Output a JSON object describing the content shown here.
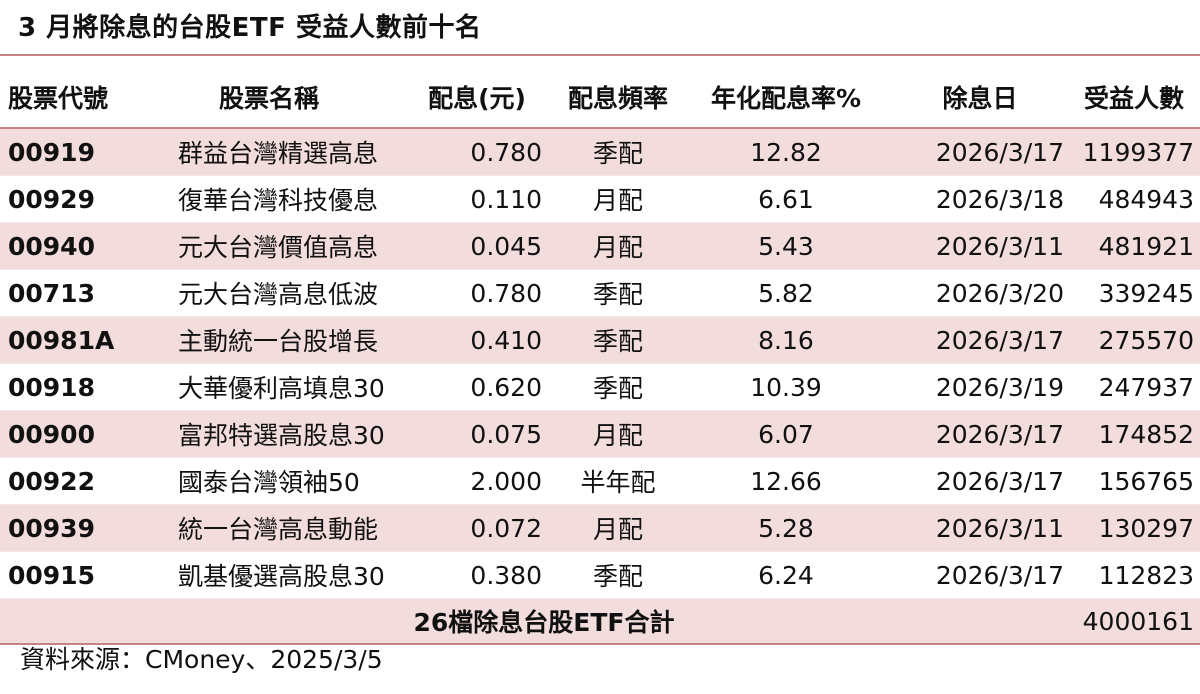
{
  "title": "3 月將除息的台股ETF 受益人數前十名",
  "headers": {
    "code": "股票代號",
    "name": "股票名稱",
    "dividend": "配息(元)",
    "frequency": "配息頻率",
    "yield": "年化配息率%",
    "ex_date": "除息日",
    "holders": "受益人數"
  },
  "rows": [
    {
      "code": "00919",
      "name": "群益台灣精選高息",
      "dividend": "0.780",
      "frequency": "季配",
      "yield": "12.82",
      "ex_date": "2026/3/17",
      "holders": "1199377"
    },
    {
      "code": "00929",
      "name": "復華台灣科技優息",
      "dividend": "0.110",
      "frequency": "月配",
      "yield": "6.61",
      "ex_date": "2026/3/18",
      "holders": "484943"
    },
    {
      "code": "00940",
      "name": "元大台灣價值高息",
      "dividend": "0.045",
      "frequency": "月配",
      "yield": "5.43",
      "ex_date": "2026/3/11",
      "holders": "481921"
    },
    {
      "code": "00713",
      "name": "元大台灣高息低波",
      "dividend": "0.780",
      "frequency": "季配",
      "yield": "5.82",
      "ex_date": "2026/3/20",
      "holders": "339245"
    },
    {
      "code": "00981A",
      "name": "主動統一台股增長",
      "dividend": "0.410",
      "frequency": "季配",
      "yield": "8.16",
      "ex_date": "2026/3/17",
      "holders": "275570"
    },
    {
      "code": "00918",
      "name": "大華優利高填息30",
      "dividend": "0.620",
      "frequency": "季配",
      "yield": "10.39",
      "ex_date": "2026/3/19",
      "holders": "247937"
    },
    {
      "code": "00900",
      "name": "富邦特選高股息30",
      "dividend": "0.075",
      "frequency": "月配",
      "yield": "6.07",
      "ex_date": "2026/3/17",
      "holders": "174852"
    },
    {
      "code": "00922",
      "name": "國泰台灣領袖50",
      "dividend": "2.000",
      "frequency": "半年配",
      "yield": "12.66",
      "ex_date": "2026/3/17",
      "holders": "156765"
    },
    {
      "code": "00939",
      "name": "統一台灣高息動能",
      "dividend": "0.072",
      "frequency": "月配",
      "yield": "5.28",
      "ex_date": "2026/3/11",
      "holders": "130297"
    },
    {
      "code": "00915",
      "name": "凱基優選高股息30",
      "dividend": "0.380",
      "frequency": "季配",
      "yield": "6.24",
      "ex_date": "2026/3/17",
      "holders": "112823"
    }
  ],
  "total": {
    "label": "26檔除息台股ETF合計",
    "holders": "4000161"
  },
  "source": "資料來源：CMoney、2025/3/5",
  "colors": {
    "stripe": "#f2dcdc",
    "rule": "#c58383"
  }
}
